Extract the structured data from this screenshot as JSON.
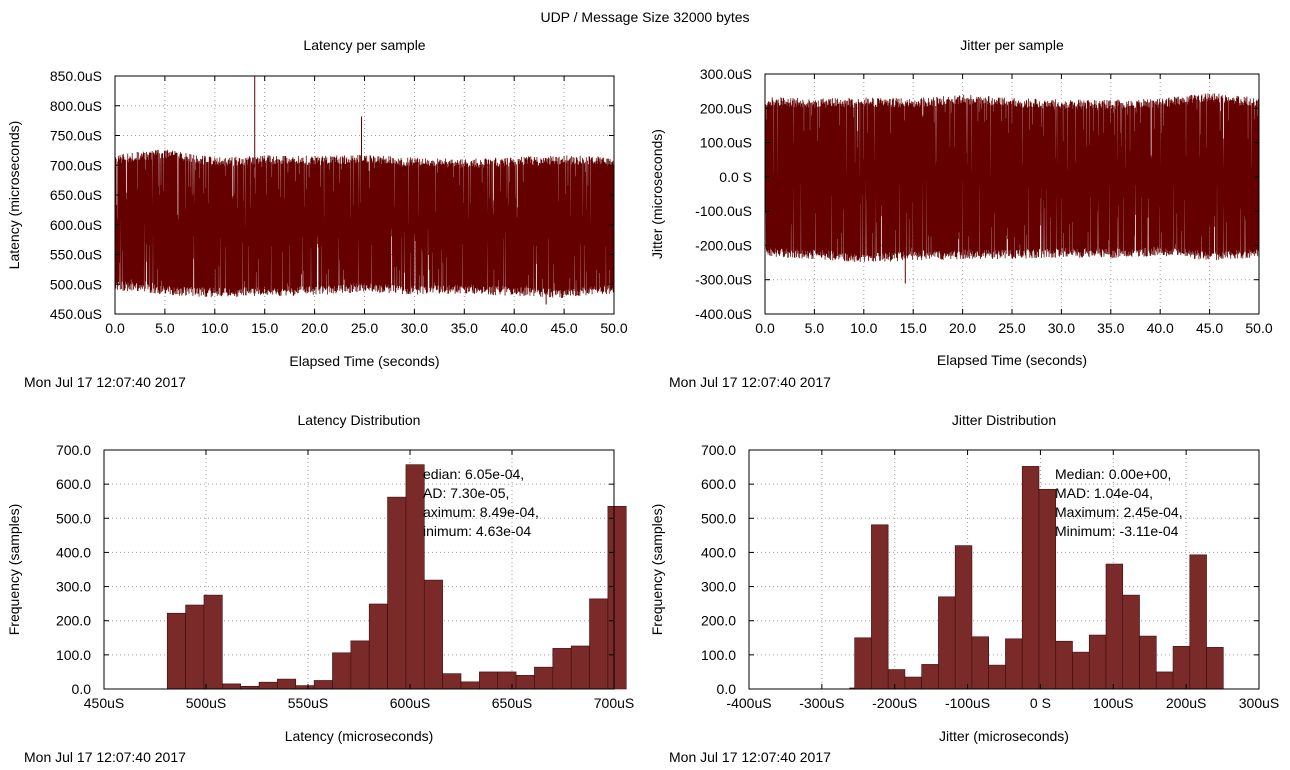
{
  "figure": {
    "title": "UDP / Message Size 32000 bytes",
    "bar_color": "#7b2a2a",
    "trace_color": "#650000"
  },
  "chart_data": [
    {
      "id": "latency_per_sample",
      "type": "line",
      "title": "Latency per sample",
      "xlabel": "Elapsed Time (seconds)",
      "ylabel": "Latency (microseconds)",
      "timestamp": "Mon Jul 17 12:07:40 2017",
      "xlim": [
        0,
        50
      ],
      "ylim": [
        450,
        850
      ],
      "grid": true,
      "xticks": [
        0,
        5,
        10,
        15,
        20,
        25,
        30,
        35,
        40,
        45,
        50
      ],
      "xtick_labels": [
        "0.0",
        "5.0",
        "10.0",
        "15.0",
        "20.0",
        "25.0",
        "30.0",
        "35.0",
        "40.0",
        "45.0",
        "50.0"
      ],
      "yticks": [
        450,
        500,
        550,
        600,
        650,
        700,
        750,
        800,
        850
      ],
      "ytick_labels": [
        "450.0uS",
        "500.0uS",
        "550.0uS",
        "600.0uS",
        "650.0uS",
        "700.0uS",
        "750.0uS",
        "800.0uS",
        "850.0uS"
      ],
      "envelope": {
        "x": [
          0,
          5,
          10,
          15,
          20,
          25,
          30,
          35,
          40,
          45,
          50
        ],
        "y_upper": [
          718,
          728,
          714,
          717,
          716,
          718,
          713,
          711,
          714,
          717,
          714
        ],
        "y_lower": [
          490,
          482,
          478,
          480,
          481,
          487,
          482,
          484,
          480,
          476,
          484
        ]
      },
      "spikes": [
        {
          "x": 14.0,
          "y": 849
        },
        {
          "x": 24.7,
          "y": 782
        },
        {
          "x": 43.2,
          "y": 466
        }
      ]
    },
    {
      "id": "jitter_per_sample",
      "type": "line",
      "title": "Jitter per sample",
      "xlabel": "Elapsed Time (seconds)",
      "ylabel": "Jitter (microseconds)",
      "timestamp": "Mon Jul 17 12:07:40 2017",
      "xlim": [
        0,
        50
      ],
      "ylim": [
        -400,
        300
      ],
      "grid": true,
      "xticks": [
        0,
        5,
        10,
        15,
        20,
        25,
        30,
        35,
        40,
        45,
        50
      ],
      "xtick_labels": [
        "0.0",
        "5.0",
        "10.0",
        "15.0",
        "20.0",
        "25.0",
        "30.0",
        "35.0",
        "40.0",
        "45.0",
        "50.0"
      ],
      "yticks": [
        -400,
        -300,
        -200,
        -100,
        0,
        100,
        200,
        300
      ],
      "ytick_labels": [
        "-400.0uS",
        "-300.0uS",
        "-200.0uS",
        "-100.0uS",
        "0.0 S",
        "100.0uS",
        "200.0uS",
        "300.0uS"
      ],
      "envelope": {
        "x": [
          0,
          5,
          10,
          15,
          20,
          25,
          30,
          35,
          40,
          45,
          50
        ],
        "y_upper": [
          235,
          228,
          232,
          230,
          240,
          232,
          225,
          225,
          230,
          245,
          232
        ],
        "y_lower": [
          -235,
          -240,
          -250,
          -245,
          -240,
          -240,
          -235,
          -238,
          -230,
          -245,
          -235
        ]
      },
      "spikes": [
        {
          "x": 14.2,
          "y": -311
        }
      ]
    },
    {
      "id": "latency_distribution",
      "type": "bar",
      "title": "Latency Distribution",
      "xlabel": "Latency (microseconds)",
      "ylabel": "Frequency (samples)",
      "timestamp": "Mon Jul 17 12:07:40 2017",
      "xlim": [
        450,
        700
      ],
      "ylim": [
        0,
        700
      ],
      "grid": true,
      "xticks": [
        450,
        500,
        550,
        600,
        650,
        700
      ],
      "xtick_labels": [
        "450uS",
        "500uS",
        "550uS",
        "600uS",
        "650uS",
        "700uS"
      ],
      "yticks": [
        0,
        100,
        200,
        300,
        400,
        500,
        600,
        700
      ],
      "ytick_labels": [
        "0.0",
        "100.0",
        "200.0",
        "300.0",
        "400.0",
        "500.0",
        "600.0",
        "700.0"
      ],
      "bin_edges": [
        481,
        490,
        499,
        508,
        517,
        526,
        535,
        544,
        553,
        562,
        571,
        580,
        589,
        598,
        607,
        616,
        625,
        634,
        643,
        652,
        661,
        670,
        679,
        688,
        697,
        706
      ],
      "values": [
        222,
        246,
        275,
        15,
        8,
        20,
        29,
        10,
        25,
        106,
        141,
        249,
        562,
        657,
        319,
        45,
        21,
        50,
        50,
        40,
        64,
        119,
        126,
        264,
        535
      ],
      "annotations": [
        "Median: 6.05e-04,",
        "MAD: 7.30e-05,",
        "Maximum: 8.49e-04,",
        "Minimum: 4.63e-04"
      ]
    },
    {
      "id": "jitter_distribution",
      "type": "bar",
      "title": "Jitter Distribution",
      "xlabel": "Jitter (microseconds)",
      "ylabel": "Frequency (samples)",
      "timestamp": "Mon Jul 17 12:07:40 2017",
      "xlim": [
        -400,
        300
      ],
      "ylim": [
        0,
        700
      ],
      "grid": true,
      "xticks": [
        -400,
        -300,
        -200,
        -100,
        0,
        100,
        200,
        300
      ],
      "xtick_labels": [
        "-400uS",
        "-300uS",
        "-200uS",
        "-100uS",
        "0 S",
        "100uS",
        "200uS",
        "300uS"
      ],
      "yticks": [
        0,
        100,
        200,
        300,
        400,
        500,
        600,
        700
      ],
      "ytick_labels": [
        "0.0",
        "100.0",
        "200.0",
        "300.0",
        "400.0",
        "500.0",
        "600.0",
        "700.0"
      ],
      "bin_edges": [
        -255,
        -232,
        -209,
        -186,
        -163,
        -140,
        -117,
        -94,
        -71,
        -48,
        -25,
        -2,
        21,
        44,
        67,
        90,
        113,
        136,
        159,
        182,
        205,
        228,
        251
      ],
      "values": [
        150,
        481,
        57,
        35,
        72,
        270,
        420,
        153,
        70,
        147,
        652,
        585,
        140,
        108,
        158,
        366,
        275,
        155,
        50,
        125,
        393,
        122
      ],
      "extra_bars": [
        {
          "x0": -262,
          "x1": -255,
          "value": 3
        }
      ],
      "annotations": [
        "Median: 0.00e+00,",
        "MAD: 1.04e-04,",
        "Maximum: 2.45e-04,",
        "Minimum: -3.11e-04"
      ]
    }
  ]
}
